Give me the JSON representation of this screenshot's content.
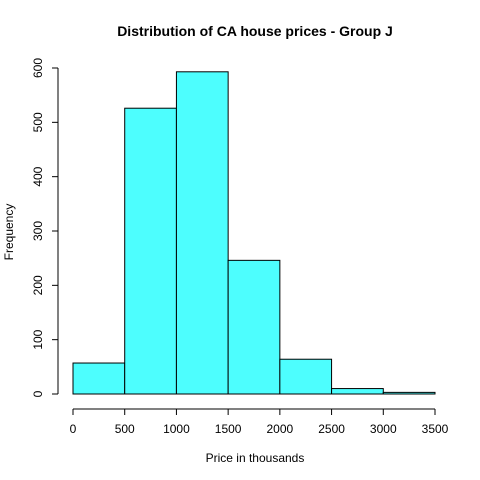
{
  "chart_data": {
    "type": "histogram",
    "title": "Distribution of CA house prices - Group J",
    "xlabel": "Price in thousands",
    "ylabel": "Frequency",
    "bins": [
      {
        "from": 0,
        "to": 500,
        "count": 57
      },
      {
        "from": 500,
        "to": 1000,
        "count": 526
      },
      {
        "from": 1000,
        "to": 1500,
        "count": 593
      },
      {
        "from": 1500,
        "to": 2000,
        "count": 246
      },
      {
        "from": 2000,
        "to": 2500,
        "count": 64
      },
      {
        "from": 2500,
        "to": 3000,
        "count": 10
      },
      {
        "from": 3000,
        "to": 3500,
        "count": 3
      }
    ],
    "xlim": [
      0,
      3500
    ],
    "ylim": [
      0,
      600
    ],
    "x_ticks": [
      "0",
      "500",
      "1000",
      "1500",
      "2000",
      "2500",
      "3000",
      "3500"
    ],
    "y_ticks": [
      "0",
      "100",
      "200",
      "300",
      "400",
      "500",
      "600"
    ],
    "bar_color": "#4dfefe",
    "bar_border_color": "#000000",
    "grid": false
  }
}
